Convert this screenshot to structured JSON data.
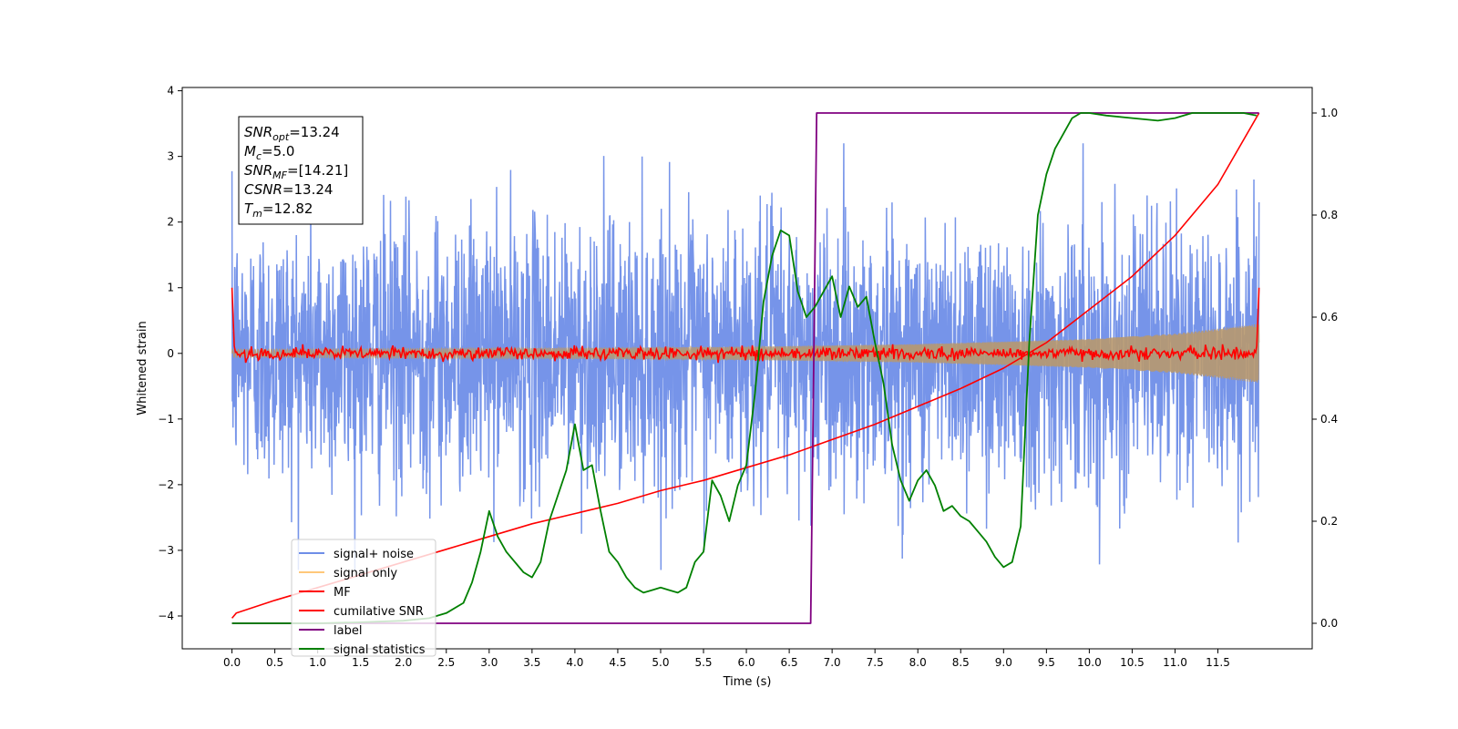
{
  "chart_data": {
    "type": "line",
    "xlabel": "Time (s)",
    "ylabel": "Whitened strain",
    "xlim": [
      -0.58,
      12.6
    ],
    "ylim_left": [
      -4.5,
      4.05
    ],
    "ylim_right": [
      -0.05,
      1.05
    ],
    "x_ticks": [
      0.0,
      0.5,
      1.0,
      1.5,
      2.0,
      2.5,
      3.0,
      3.5,
      4.0,
      4.5,
      5.0,
      5.5,
      6.0,
      6.5,
      7.0,
      7.5,
      8.0,
      8.5,
      9.0,
      9.5,
      10.0,
      10.5,
      11.0,
      11.5
    ],
    "x_tick_labels": [
      "0.0",
      "0.5",
      "1.0",
      "1.5",
      "2.0",
      "2.5",
      "3.0",
      "3.5",
      "4.0",
      "4.5",
      "5.0",
      "5.5",
      "6.0",
      "6.5",
      "7.0",
      "7.5",
      "8.0",
      "8.5",
      "9.0",
      "9.5",
      "10.0",
      "10.5",
      "11.0",
      "11.5"
    ],
    "y_ticks_left": [
      4,
      3,
      2,
      1,
      0,
      -1,
      -2,
      -3,
      -4
    ],
    "y_tick_labels_left": [
      "4",
      "3",
      "2",
      "1",
      "0",
      "−1",
      "−2",
      "−3",
      "−4"
    ],
    "y_ticks_right": [
      1.0,
      0.8,
      0.6,
      0.4,
      0.2,
      0.0
    ],
    "y_tick_labels_right": [
      "1.0",
      "0.8",
      "0.6",
      "0.4",
      "0.2",
      "0.0"
    ],
    "legend_position": "lower-left",
    "legend": [
      {
        "label": "signal+ noise",
        "color": "#6f8ee8"
      },
      {
        "label": "signal only",
        "color": "#ffc87a"
      },
      {
        "label": "MF",
        "color": "#ff0000"
      },
      {
        "label": "cumilative SNR",
        "color": "#ff0000"
      },
      {
        "label": "label",
        "color": "#800080"
      },
      {
        "label": "signal statistics",
        "color": "#008000"
      }
    ],
    "annotation": {
      "position": "top-left",
      "lines": [
        {
          "base": "SNR",
          "sub": "opt",
          "value": "=13.24"
        },
        {
          "base": "M",
          "sub": "c",
          "value": "=5.0"
        },
        {
          "base": "SNR",
          "sub": "MF",
          "value": "=[14.21]"
        },
        {
          "base": "CSNR",
          "sub": "",
          "value": "=13.24"
        },
        {
          "base": "T",
          "sub": "m",
          "value": "=12.82"
        }
      ]
    },
    "series": [
      {
        "name": "signal+ noise",
        "axis": "left",
        "color": "#6f8ee8",
        "description": "white noise, std about 1, peaks near ±3",
        "x_range": [
          0.0,
          11.98
        ],
        "envelope": [
          -3.3,
          3.2
        ]
      },
      {
        "name": "signal only",
        "axis": "left",
        "color": "#ffc87a",
        "description": "chirp whose amplitude grows with time",
        "x": [
          0.0,
          2.0,
          4.0,
          6.0,
          8.0,
          10.0,
          11.0,
          11.98
        ],
        "amplitude": [
          0.06,
          0.07,
          0.08,
          0.1,
          0.14,
          0.22,
          0.3,
          0.45
        ]
      },
      {
        "name": "MF",
        "axis": "left",
        "color": "#ff0000",
        "description": "matched-filter output, small noise around 0 with spikes of 1.0 at both ends",
        "x": [
          0.0,
          0.03,
          11.95,
          11.98
        ],
        "y": [
          1.0,
          0.0,
          0.0,
          1.0
        ],
        "noise_amplitude": 0.08
      },
      {
        "name": "cumilative SNR",
        "axis": "right",
        "color": "#ff0000",
        "x": [
          0.0,
          0.05,
          0.5,
          1.0,
          1.5,
          2.0,
          2.5,
          3.0,
          3.5,
          4.0,
          4.5,
          5.0,
          5.5,
          6.0,
          6.5,
          7.0,
          7.5,
          8.0,
          8.5,
          9.0,
          9.5,
          10.0,
          10.5,
          11.0,
          11.5,
          11.98
        ],
        "y": [
          0.01,
          0.02,
          0.045,
          0.07,
          0.095,
          0.12,
          0.145,
          0.17,
          0.195,
          0.215,
          0.235,
          0.26,
          0.28,
          0.305,
          0.33,
          0.36,
          0.39,
          0.425,
          0.46,
          0.5,
          0.55,
          0.615,
          0.68,
          0.76,
          0.86,
          1.0
        ]
      },
      {
        "name": "label",
        "axis": "right",
        "color": "#800080",
        "x": [
          0.0,
          6.75,
          6.82,
          11.98
        ],
        "y": [
          0.0,
          0.0,
          1.0,
          1.0
        ]
      },
      {
        "name": "signal statistics",
        "axis": "right",
        "color": "#008000",
        "x": [
          0.0,
          1.0,
          1.5,
          2.0,
          2.3,
          2.5,
          2.7,
          2.8,
          2.9,
          3.0,
          3.1,
          3.2,
          3.4,
          3.5,
          3.6,
          3.7,
          3.8,
          3.9,
          4.0,
          4.1,
          4.2,
          4.3,
          4.4,
          4.5,
          4.6,
          4.7,
          4.8,
          4.9,
          5.0,
          5.1,
          5.2,
          5.3,
          5.4,
          5.5,
          5.6,
          5.7,
          5.8,
          5.9,
          6.0,
          6.1,
          6.2,
          6.3,
          6.4,
          6.5,
          6.6,
          6.7,
          6.8,
          6.9,
          7.0,
          7.1,
          7.2,
          7.3,
          7.4,
          7.5,
          7.6,
          7.7,
          7.8,
          7.9,
          8.0,
          8.1,
          8.2,
          8.3,
          8.4,
          8.5,
          8.6,
          8.7,
          8.8,
          8.9,
          9.0,
          9.1,
          9.2,
          9.3,
          9.4,
          9.5,
          9.6,
          9.7,
          9.8,
          9.9,
          10.0,
          10.2,
          10.5,
          10.8,
          11.0,
          11.2,
          11.5,
          11.8,
          11.95
        ],
        "y": [
          0.0,
          0.0,
          0.002,
          0.005,
          0.01,
          0.02,
          0.04,
          0.08,
          0.14,
          0.22,
          0.17,
          0.14,
          0.1,
          0.09,
          0.12,
          0.2,
          0.25,
          0.3,
          0.39,
          0.3,
          0.31,
          0.22,
          0.14,
          0.12,
          0.09,
          0.07,
          0.06,
          0.065,
          0.07,
          0.065,
          0.06,
          0.07,
          0.12,
          0.14,
          0.28,
          0.25,
          0.2,
          0.27,
          0.31,
          0.45,
          0.63,
          0.72,
          0.77,
          0.76,
          0.65,
          0.6,
          0.62,
          0.65,
          0.68,
          0.6,
          0.66,
          0.62,
          0.64,
          0.55,
          0.47,
          0.35,
          0.28,
          0.24,
          0.28,
          0.3,
          0.27,
          0.22,
          0.23,
          0.21,
          0.2,
          0.18,
          0.16,
          0.13,
          0.11,
          0.12,
          0.19,
          0.55,
          0.8,
          0.88,
          0.93,
          0.96,
          0.99,
          1.0,
          1.0,
          0.995,
          0.99,
          0.985,
          0.99,
          1.0,
          1.0,
          1.0,
          0.995
        ]
      }
    ]
  }
}
